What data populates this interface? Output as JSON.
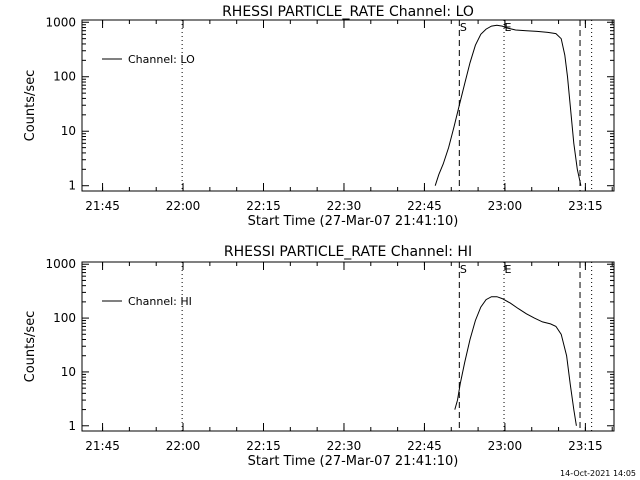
{
  "footer": {
    "date": "14-Oct-2021 14:05"
  },
  "chart_data": [
    {
      "type": "line",
      "title": "RHESSI PARTICLE_RATE Channel: LO",
      "xlabel": "Start Time (27-Mar-07 21:41:10)",
      "ylabel": "Counts/sec",
      "y_scale": "log",
      "ylim": [
        0.8,
        1100
      ],
      "xlim": [
        "21:41:10",
        "23:20:20"
      ],
      "x_ticks": [
        "21:45",
        "22:00",
        "22:15",
        "22:30",
        "22:45",
        "23:00",
        "23:15"
      ],
      "y_ticks": [
        "1",
        "10",
        "100",
        "1000"
      ],
      "legend": {
        "label": "Channel: LO",
        "position": "top-left"
      },
      "annotations": [
        {
          "label": "S",
          "time": "22:51:30",
          "style": "dashed"
        },
        {
          "label": "E",
          "time": "22:59:50",
          "style": "dotted"
        },
        {
          "label": "",
          "time": "23:14:00",
          "style": "dashed"
        },
        {
          "label": "",
          "time": "23:16:10",
          "style": "dotted"
        },
        {
          "label": "",
          "time": "21:59:50",
          "style": "dotted"
        }
      ],
      "series": [
        {
          "name": "Channel: LO",
          "points": [
            [
              "22:47:00",
              1.0
            ],
            [
              "22:47:40",
              1.6
            ],
            [
              "22:48:30",
              2.5
            ],
            [
              "22:49:30",
              5
            ],
            [
              "22:50:30",
              12
            ],
            [
              "22:51:30",
              30
            ],
            [
              "22:52:30",
              75
            ],
            [
              "22:53:30",
              180
            ],
            [
              "22:54:30",
              380
            ],
            [
              "22:55:30",
              600
            ],
            [
              "22:56:30",
              750
            ],
            [
              "22:57:30",
              850
            ],
            [
              "22:58:30",
              880
            ],
            [
              "22:59:30",
              850
            ],
            [
              "23:00:30",
              780
            ],
            [
              "23:02:00",
              720
            ],
            [
              "23:04:00",
              700
            ],
            [
              "23:06:00",
              680
            ],
            [
              "23:08:00",
              650
            ],
            [
              "23:09:30",
              620
            ],
            [
              "23:10:30",
              500
            ],
            [
              "23:11:10",
              250
            ],
            [
              "23:11:40",
              100
            ],
            [
              "23:12:10",
              30
            ],
            [
              "23:12:50",
              6
            ],
            [
              "23:13:30",
              2
            ],
            [
              "23:14:10",
              1.0
            ]
          ]
        }
      ]
    },
    {
      "type": "line",
      "title": "RHESSI PARTICLE_RATE Channel: HI",
      "xlabel": "Start Time (27-Mar-07 21:41:10)",
      "ylabel": "Counts/sec",
      "y_scale": "log",
      "ylim": [
        0.8,
        1100
      ],
      "xlim": [
        "21:41:10",
        "23:20:20"
      ],
      "x_ticks": [
        "21:45",
        "22:00",
        "22:15",
        "22:30",
        "22:45",
        "23:00",
        "23:15"
      ],
      "y_ticks": [
        "1",
        "10",
        "100",
        "1000"
      ],
      "legend": {
        "label": "Channel: HI",
        "position": "top-left"
      },
      "annotations": [
        {
          "label": "S",
          "time": "22:51:30",
          "style": "dashed"
        },
        {
          "label": "E",
          "time": "22:59:50",
          "style": "dotted"
        },
        {
          "label": "",
          "time": "23:14:00",
          "style": "dashed"
        },
        {
          "label": "",
          "time": "23:16:10",
          "style": "dotted"
        },
        {
          "label": "",
          "time": "21:59:50",
          "style": "dotted"
        }
      ],
      "series": [
        {
          "name": "Channel: HI",
          "points": [
            [
              "22:50:40",
              2
            ],
            [
              "22:51:10",
              3
            ],
            [
              "22:51:40",
              6
            ],
            [
              "22:52:30",
              15
            ],
            [
              "22:53:30",
              40
            ],
            [
              "22:54:30",
              90
            ],
            [
              "22:55:30",
              160
            ],
            [
              "22:56:30",
              220
            ],
            [
              "22:57:30",
              250
            ],
            [
              "22:58:30",
              250
            ],
            [
              "22:59:30",
              230
            ],
            [
              "23:01:00",
              190
            ],
            [
              "23:02:30",
              150
            ],
            [
              "23:04:00",
              120
            ],
            [
              "23:05:30",
              100
            ],
            [
              "23:07:00",
              85
            ],
            [
              "23:08:30",
              78
            ],
            [
              "23:09:30",
              70
            ],
            [
              "23:10:30",
              50
            ],
            [
              "23:11:30",
              20
            ],
            [
              "23:12:10",
              6
            ],
            [
              "23:12:50",
              2
            ],
            [
              "23:13:20",
              1.0
            ]
          ]
        }
      ]
    }
  ]
}
